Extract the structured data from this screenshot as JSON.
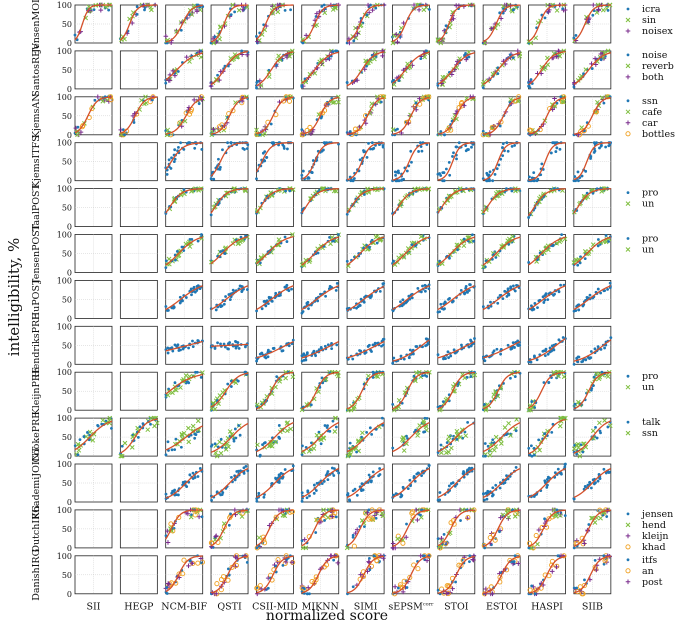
{
  "figure": {
    "ylabel": "intelligibility, %",
    "xlabel": "normalized score"
  },
  "colors": {
    "blue": "#1f77b4",
    "green": "#7fbf3f",
    "purple": "#7b2d8e",
    "orange": "#f0a020",
    "fit": "#d5502a"
  },
  "chart_data": {
    "type": "scatter",
    "grid": true,
    "ylim": [
      0,
      100
    ],
    "y_ticks": [
      0,
      50,
      100
    ],
    "columns": [
      "SII",
      "HEGP",
      "NCM-BIF",
      "QSTI",
      "CSII-MID",
      "MIKNN",
      "SIMI",
      "sEPSM",
      "STOI",
      "ESTOI",
      "HASPI",
      "SIIB"
    ],
    "column_superscripts": {
      "sEPSM": "corr"
    },
    "rows": [
      {
        "label": "JensenMOD",
        "legend": [
          {
            "name": "icra",
            "marker": "dot",
            "color": "blue"
          },
          {
            "name": "sin",
            "marker": "x",
            "color": "green"
          },
          {
            "name": "noisex",
            "marker": "plus",
            "color": "purple"
          }
        ],
        "active": [
          1,
          1,
          1,
          1,
          1,
          1,
          1,
          1,
          1,
          1,
          1,
          1
        ],
        "slope": [
          12,
          10,
          8,
          10,
          9,
          9,
          9,
          9,
          10,
          9,
          10,
          9
        ],
        "mid": [
          0.2,
          0.25,
          0.45,
          0.35,
          0.25,
          0.35,
          0.35,
          0.35,
          0.3,
          0.35,
          0.3,
          0.3
        ],
        "spread": 15
      },
      {
        "label": "SantosREV",
        "legend": [
          {
            "name": "noise",
            "marker": "dot",
            "color": "blue"
          },
          {
            "name": "reverb",
            "marker": "x",
            "color": "green"
          },
          {
            "name": "both",
            "marker": "plus",
            "color": "purple"
          }
        ],
        "active": [
          0,
          0,
          1,
          1,
          1,
          1,
          1,
          1,
          1,
          1,
          1,
          1
        ],
        "slope": [
          0,
          0,
          4,
          6,
          6,
          5,
          6,
          5,
          5,
          5,
          6,
          5
        ],
        "mid": [
          0,
          0,
          0.3,
          0.35,
          0.4,
          0.35,
          0.4,
          0.35,
          0.4,
          0.4,
          0.35,
          0.4
        ],
        "spread": 10
      },
      {
        "label": "KjemsAN",
        "legend": [
          {
            "name": "ssn",
            "marker": "dot",
            "color": "blue"
          },
          {
            "name": "cafe",
            "marker": "x",
            "color": "green"
          },
          {
            "name": "car",
            "marker": "plus",
            "color": "purple"
          },
          {
            "name": "bottles",
            "marker": "circle",
            "color": "orange"
          }
        ],
        "active": [
          1,
          1,
          1,
          1,
          1,
          1,
          1,
          1,
          1,
          1,
          1,
          1
        ],
        "slope": [
          8,
          8,
          7,
          8,
          8,
          8,
          8,
          8,
          8,
          8,
          8,
          8
        ],
        "mid": [
          0.35,
          0.4,
          0.55,
          0.5,
          0.45,
          0.5,
          0.55,
          0.5,
          0.5,
          0.55,
          0.5,
          0.5
        ],
        "spread": 12
      },
      {
        "label": "KjemsITFS",
        "legend": [],
        "active": [
          0,
          0,
          1,
          1,
          1,
          1,
          1,
          1,
          1,
          1,
          1,
          1
        ],
        "slope": [
          0,
          0,
          6,
          8,
          8,
          9,
          9,
          9,
          10,
          10,
          10,
          10
        ],
        "mid": [
          0,
          0,
          0.15,
          0.25,
          0.15,
          0.35,
          0.4,
          0.45,
          0.4,
          0.4,
          0.45,
          0.35
        ],
        "spread": 20
      },
      {
        "label": "TaalPOST",
        "legend": [
          {
            "name": "pro",
            "marker": "dot",
            "color": "blue"
          },
          {
            "name": "un",
            "marker": "x",
            "color": "green"
          }
        ],
        "active": [
          0,
          0,
          1,
          1,
          1,
          1,
          1,
          1,
          1,
          1,
          1,
          1
        ],
        "slope": [
          0,
          0,
          6,
          6,
          6,
          6,
          6,
          6,
          6,
          6,
          6,
          6
        ],
        "mid": [
          0,
          0,
          0.1,
          0.1,
          0.1,
          0.1,
          0.1,
          0.15,
          0.1,
          0.1,
          0.15,
          0.1
        ],
        "spread": 6
      },
      {
        "label": "JensenPOST",
        "legend": [
          {
            "name": "pro",
            "marker": "dot",
            "color": "blue"
          },
          {
            "name": "un",
            "marker": "x",
            "color": "green"
          }
        ],
        "active": [
          0,
          0,
          1,
          1,
          1,
          1,
          1,
          1,
          1,
          1,
          1,
          1
        ],
        "slope": [
          0,
          0,
          4,
          4,
          4,
          4,
          4,
          4,
          4,
          4,
          4,
          4
        ],
        "mid": [
          0,
          0,
          0.35,
          0.3,
          0.3,
          0.35,
          0.35,
          0.35,
          0.35,
          0.35,
          0.35,
          0.35
        ],
        "spread": 10
      },
      {
        "label": "HuPOST",
        "legend": [],
        "active": [
          0,
          0,
          1,
          1,
          1,
          1,
          1,
          1,
          1,
          1,
          1,
          1
        ],
        "slope": [
          0,
          0,
          3,
          3,
          3,
          3,
          3,
          3,
          3,
          3,
          3,
          3
        ],
        "mid": [
          0,
          0,
          0.4,
          0.4,
          0.4,
          0.4,
          0.45,
          0.4,
          0.4,
          0.4,
          0.4,
          0.4
        ],
        "spread": 10
      },
      {
        "label": "HendriksPRE",
        "legend": [],
        "active": [
          0,
          0,
          1,
          1,
          1,
          1,
          1,
          1,
          1,
          1,
          1,
          1
        ],
        "slope": [
          0,
          0,
          1,
          0.2,
          2,
          2,
          2,
          3,
          2,
          2,
          3,
          3
        ],
        "mid": [
          0,
          0,
          0.6,
          0.5,
          0.8,
          0.8,
          0.8,
          0.8,
          0.8,
          0.8,
          0.75,
          0.8
        ],
        "spread": 10
      },
      {
        "label": "KleijnPRE",
        "legend": [
          {
            "name": "pro",
            "marker": "dot",
            "color": "blue"
          },
          {
            "name": "un",
            "marker": "x",
            "color": "green"
          }
        ],
        "active": [
          0,
          0,
          1,
          1,
          1,
          1,
          1,
          1,
          1,
          1,
          1,
          1
        ],
        "slope": [
          0,
          0,
          3,
          6,
          8,
          8,
          8,
          8,
          8,
          8,
          8,
          8
        ],
        "mid": [
          0,
          0,
          0.1,
          0.4,
          0.4,
          0.4,
          0.4,
          0.4,
          0.4,
          0.4,
          0.35,
          0.4
        ],
        "spread": 12
      },
      {
        "label": "CookePRE",
        "legend": [
          {
            "name": "talk",
            "marker": "dot",
            "color": "blue"
          },
          {
            "name": "ssn",
            "marker": "x",
            "color": "green"
          }
        ],
        "active": [
          1,
          1,
          1,
          1,
          1,
          1,
          1,
          1,
          1,
          1,
          1,
          1
        ],
        "slope": [
          4,
          6,
          3,
          4,
          4,
          4,
          4,
          4,
          4,
          4,
          6,
          5
        ],
        "mid": [
          0.4,
          0.4,
          0.55,
          0.55,
          0.5,
          0.5,
          0.5,
          0.5,
          0.5,
          0.5,
          0.45,
          0.5
        ],
        "spread": 20
      },
      {
        "label": "KhademiJOINT",
        "legend": [],
        "active": [
          0,
          0,
          1,
          1,
          1,
          1,
          1,
          1,
          1,
          1,
          1,
          1
        ],
        "slope": [
          0,
          0,
          4,
          4,
          4,
          4,
          4,
          4,
          4,
          4,
          4,
          4
        ],
        "mid": [
          0,
          0,
          0.55,
          0.5,
          0.5,
          0.5,
          0.5,
          0.5,
          0.5,
          0.5,
          0.5,
          0.5
        ],
        "spread": 12
      },
      {
        "label": "DutchIRG",
        "legend": [
          {
            "name": "jensen",
            "marker": "dot",
            "color": "blue"
          },
          {
            "name": "hend",
            "marker": "x",
            "color": "green"
          },
          {
            "name": "kleijn",
            "marker": "plus",
            "color": "purple"
          },
          {
            "name": "khad",
            "marker": "circle",
            "color": "orange"
          }
        ],
        "active": [
          0,
          0,
          1,
          1,
          1,
          1,
          1,
          1,
          1,
          1,
          1,
          1
        ],
        "slope": [
          0,
          0,
          8,
          8,
          8,
          8,
          8,
          8,
          8,
          8,
          8,
          8
        ],
        "mid": [
          0,
          0,
          0.15,
          0.35,
          0.35,
          0.35,
          0.35,
          0.4,
          0.35,
          0.4,
          0.4,
          0.4
        ],
        "spread": 20
      },
      {
        "label": "DanishIRG",
        "legend": [
          {
            "name": "itfs",
            "marker": "dot",
            "color": "blue"
          },
          {
            "name": "an",
            "marker": "circle",
            "color": "orange"
          },
          {
            "name": "post",
            "marker": "plus",
            "color": "purple"
          }
        ],
        "active": [
          0,
          0,
          1,
          1,
          1,
          1,
          1,
          1,
          1,
          1,
          1,
          1
        ],
        "slope": [
          0,
          0,
          8,
          8,
          8,
          8,
          8,
          8,
          8,
          8,
          8,
          8
        ],
        "mid": [
          0,
          0,
          0.35,
          0.45,
          0.45,
          0.45,
          0.45,
          0.5,
          0.5,
          0.5,
          0.5,
          0.45
        ],
        "spread": 18
      }
    ]
  }
}
